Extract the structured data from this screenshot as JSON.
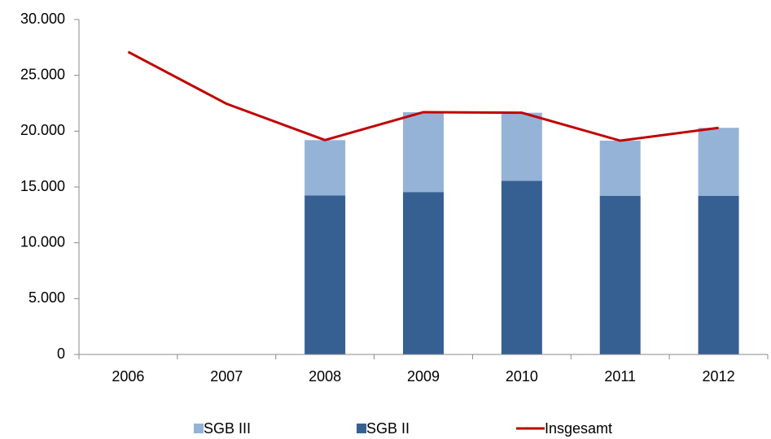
{
  "chart_data": {
    "type": "bar",
    "categories": [
      "2006",
      "2007",
      "2008",
      "2009",
      "2010",
      "2011",
      "2012"
    ],
    "series": [
      {
        "name": "SGB III",
        "type": "bar",
        "color": "#95b3d7",
        "values": [
          null,
          null,
          4950,
          7150,
          6100,
          4950,
          6100
        ]
      },
      {
        "name": "SGB II",
        "type": "bar",
        "color": "#376092",
        "values": [
          null,
          null,
          14250,
          14550,
          15550,
          14200,
          14200
        ]
      },
      {
        "name": "Insgesamt",
        "type": "line",
        "color": "#c00000",
        "values": [
          27100,
          22450,
          19200,
          21700,
          21650,
          19150,
          20300
        ]
      }
    ],
    "stacked": true,
    "ylim": [
      0,
      30000
    ],
    "yticks": [
      0,
      {
        "value": 5000,
        "label": "5.000"
      },
      {
        "value": 10000,
        "label": "10.000"
      },
      {
        "value": 15000,
        "label": "15.000"
      },
      {
        "value": 20000,
        "label": "20.000"
      },
      {
        "value": 25000,
        "label": "25.000"
      },
      {
        "value": 30000,
        "label": "30.000"
      }
    ],
    "legend": "bottom"
  }
}
